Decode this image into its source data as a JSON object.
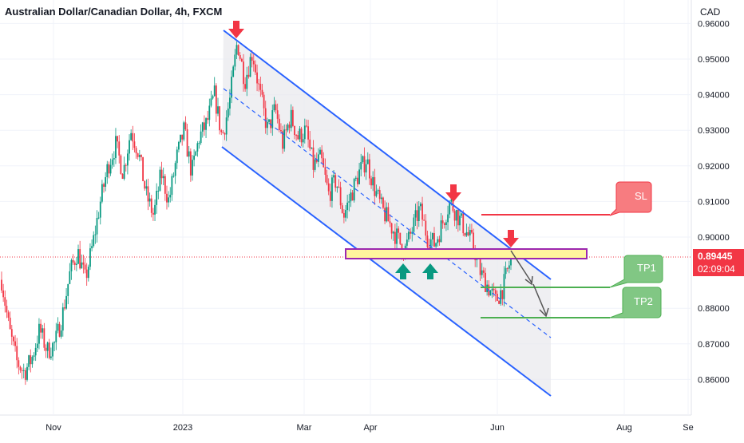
{
  "header": {
    "title": "Australian Dollar/Canadian Dollar, 4h, FXCM",
    "currency": "CAD"
  },
  "last_price": {
    "value": "0.89445",
    "countdown": "02:09:04",
    "color": "#f23645"
  },
  "colors": {
    "bull": "#089981",
    "bear": "#f23645",
    "channel": "#2962ff",
    "zone_fill": "#fff59d",
    "zone_border": "#9c27b0",
    "sl": "#f23645",
    "tp": "#4caf50"
  },
  "annotations": {
    "sl_label": "SL",
    "tp1_label": "TP1",
    "tp2_label": "TP2",
    "down_arrows": "red-down-arrow-icon",
    "up_arrows": "green-up-arrow-icon"
  },
  "chart_data": {
    "type": "candlestick",
    "title": "Australian Dollar/Canadian Dollar, 4h, FXCM",
    "xlabel": "",
    "ylabel": "CAD",
    "ylim": [
      0.855,
      0.965
    ],
    "x_tick_labels": [
      "Nov",
      "2023",
      "Mar",
      "Apr",
      "Jun",
      "Aug",
      "Se"
    ],
    "y_tick_labels": [
      "0.96000",
      "0.95000",
      "0.94000",
      "0.93000",
      "0.92000",
      "0.91000",
      "0.90000",
      "0.88000",
      "0.87000",
      "0.86000"
    ],
    "y_tick_values": [
      0.96,
      0.95,
      0.94,
      0.93,
      0.92,
      0.91,
      0.9,
      0.88,
      0.87,
      0.86
    ],
    "price_path": [
      0.888,
      0.874,
      0.865,
      0.862,
      0.866,
      0.874,
      0.868,
      0.87,
      0.878,
      0.89,
      0.896,
      0.888,
      0.898,
      0.91,
      0.92,
      0.926,
      0.918,
      0.93,
      0.924,
      0.912,
      0.906,
      0.918,
      0.91,
      0.922,
      0.93,
      0.918,
      0.928,
      0.932,
      0.94,
      0.928,
      0.938,
      0.955,
      0.944,
      0.952,
      0.94,
      0.93,
      0.936,
      0.926,
      0.934,
      0.928,
      0.93,
      0.92,
      0.922,
      0.912,
      0.916,
      0.906,
      0.912,
      0.918,
      0.922,
      0.914,
      0.908,
      0.904,
      0.9,
      0.896,
      0.902,
      0.908,
      0.9,
      0.898,
      0.904,
      0.91,
      0.906,
      0.902,
      0.898,
      0.89,
      0.886,
      0.882,
      0.886,
      0.894
    ],
    "horizontal_levels": [
      {
        "name": "SL",
        "value": 0.9065
      },
      {
        "name": "TP1",
        "value": 0.8858
      },
      {
        "name": "TP2",
        "value": 0.8774
      }
    ],
    "zone": {
      "low": 0.894,
      "high": 0.8964
    },
    "grid": true
  }
}
